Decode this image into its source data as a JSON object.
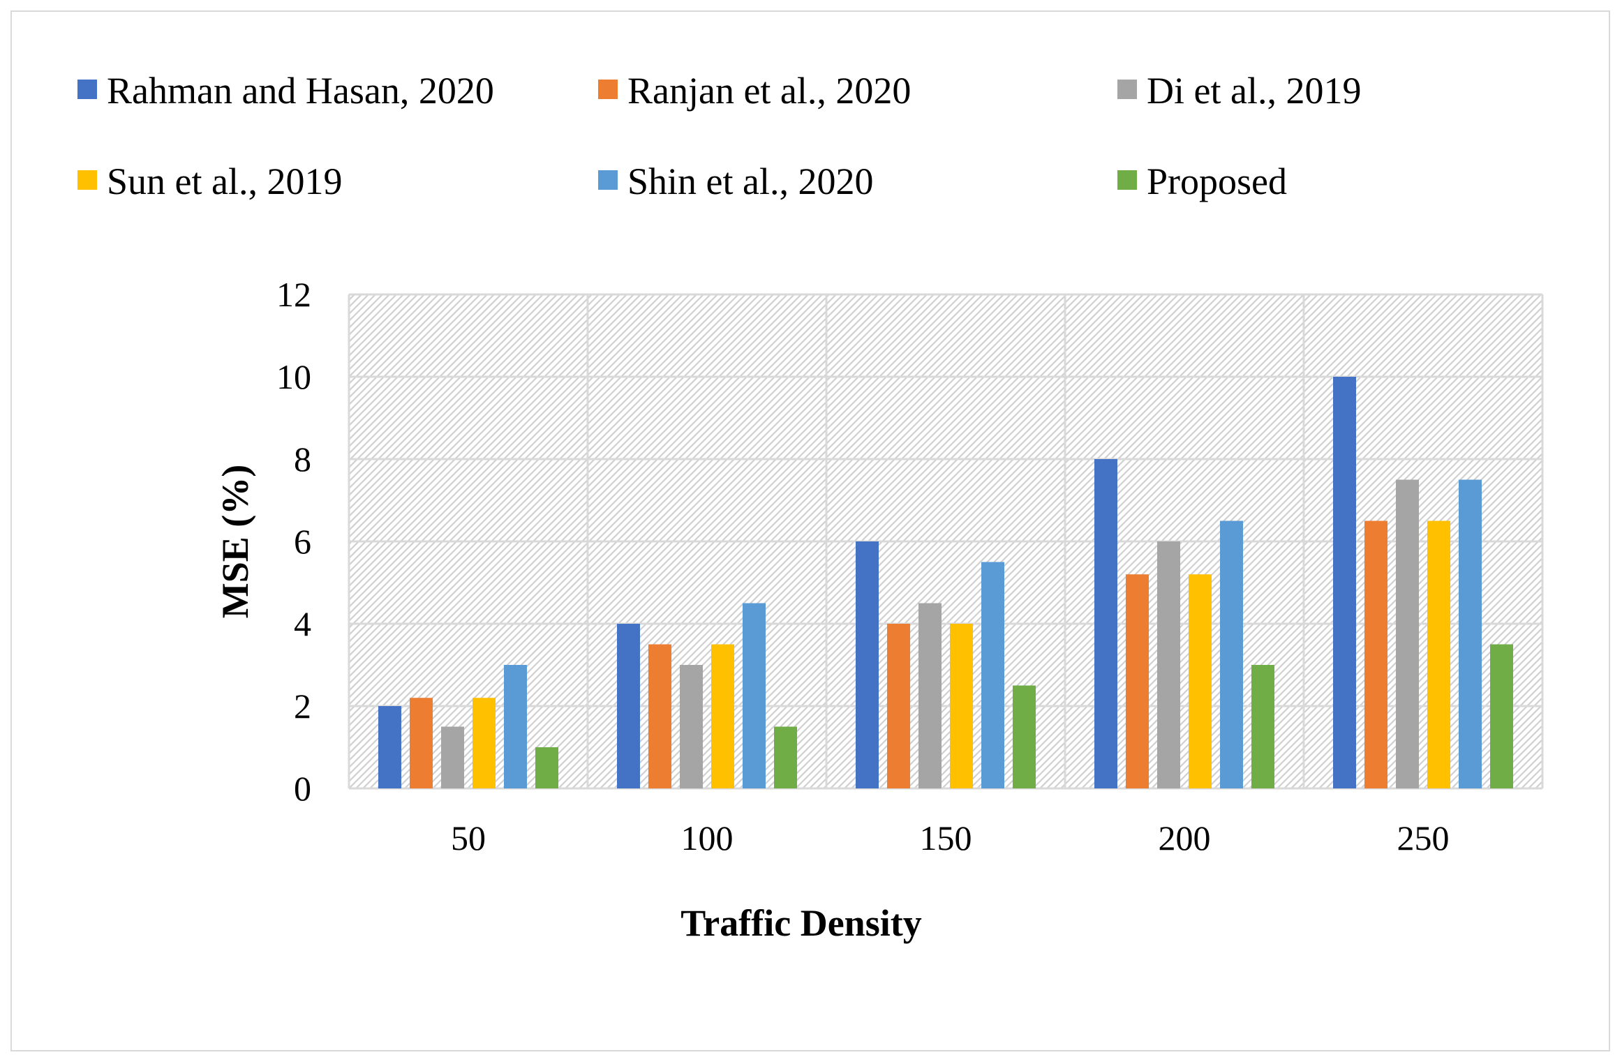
{
  "chart_data": {
    "type": "bar",
    "title": "",
    "xlabel": "Traffic Density",
    "ylabel": "MSE (%)",
    "categories": [
      "50",
      "100",
      "150",
      "200",
      "250"
    ],
    "ylim": [
      0,
      12
    ],
    "yticks": [
      "0",
      "2",
      "4",
      "6",
      "8",
      "10",
      "12"
    ],
    "grid": true,
    "legend_position": "top",
    "series": [
      {
        "name": "Rahman and Hasan, 2020",
        "color": "#4472c4",
        "values": [
          2,
          4,
          6,
          8,
          10
        ]
      },
      {
        "name": "Ranjan et al., 2020",
        "color": "#ed7d31",
        "values": [
          2.2,
          3.5,
          4,
          5.2,
          6.5
        ]
      },
      {
        "name": "Di et al., 2019",
        "color": "#a5a5a5",
        "values": [
          1.5,
          3,
          4.5,
          6,
          7.5
        ]
      },
      {
        "name": "Sun et al., 2019",
        "color": "#ffc000",
        "values": [
          2.2,
          3.5,
          4,
          5.2,
          6.5
        ]
      },
      {
        "name": "Shin et al., 2020",
        "color": "#5b9bd5",
        "values": [
          3,
          4.5,
          5.5,
          6.5,
          7.5
        ]
      },
      {
        "name": "Proposed",
        "color": "#70ad47",
        "values": [
          1,
          1.5,
          2.5,
          3,
          3.5
        ]
      }
    ]
  }
}
